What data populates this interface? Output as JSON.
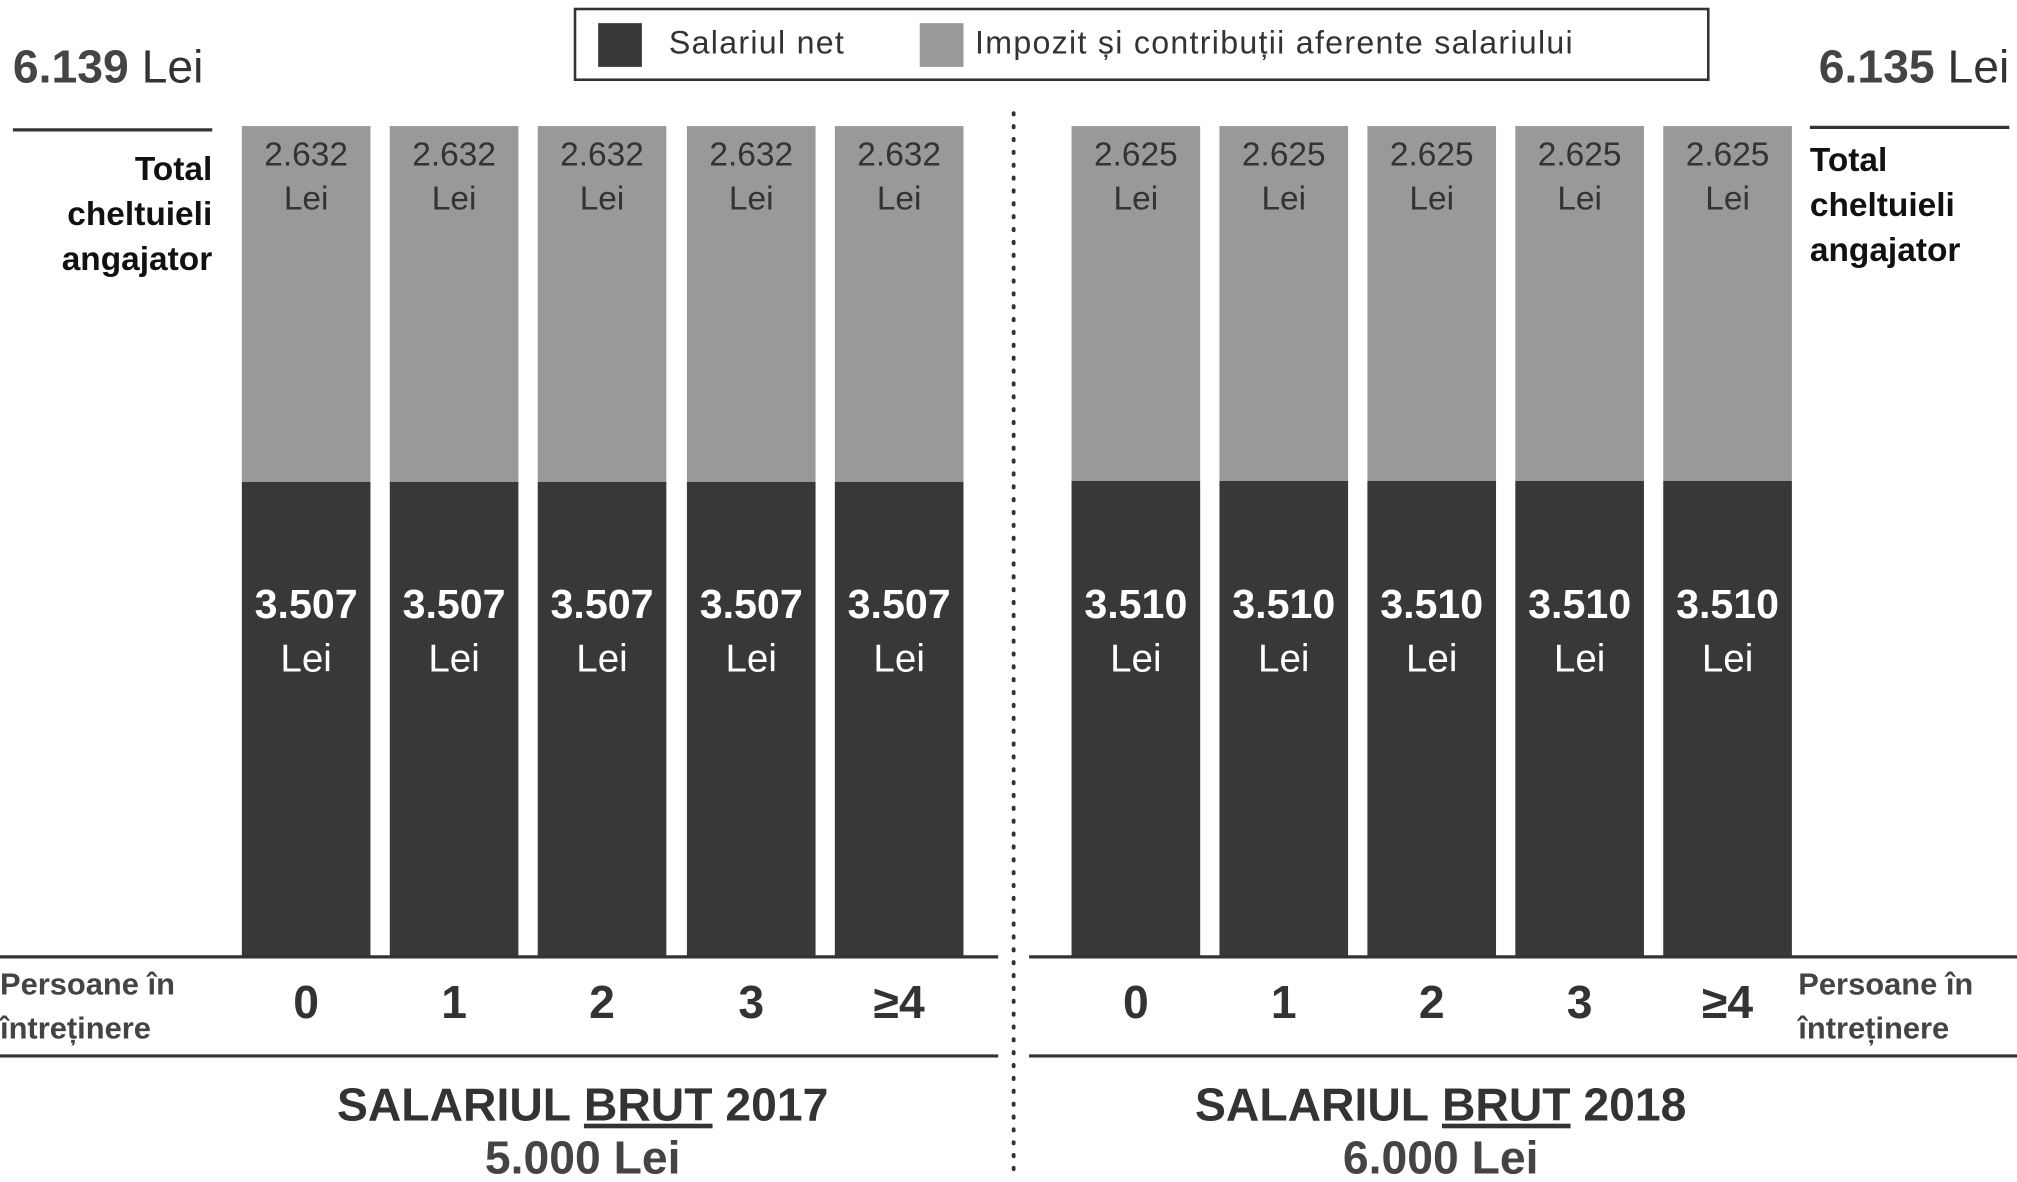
{
  "chart_data": [
    {
      "type": "bar",
      "stacked": true,
      "title_parts": [
        "SALARIUL",
        "BRUT",
        "2017"
      ],
      "subtitle": "5.000 Lei",
      "total": 6139,
      "total_label": "6.139",
      "unit": "Lei",
      "total_caption": [
        "Total",
        "cheltuieli",
        "angajator"
      ],
      "x_label": [
        "Persoane în",
        "întreținere"
      ],
      "categories": [
        "0",
        "1",
        "2",
        "3",
        "≥4"
      ],
      "series": [
        {
          "name": "Salariul net",
          "color": "#383838",
          "values": [
            3507,
            3507,
            3507,
            3507,
            3507
          ],
          "value_labels": [
            "3.507",
            "3.507",
            "3.507",
            "3.507",
            "3.507"
          ]
        },
        {
          "name": "Impozit și contribuții aferente salariului",
          "color": "#999999",
          "values": [
            2632,
            2632,
            2632,
            2632,
            2632
          ],
          "value_labels": [
            "2.632",
            "2.632",
            "2.632",
            "2.632",
            "2.632"
          ]
        }
      ]
    },
    {
      "type": "bar",
      "stacked": true,
      "title_parts": [
        "SALARIUL",
        "BRUT",
        "2018"
      ],
      "subtitle": "6.000 Lei",
      "total": 6135,
      "total_label": "6.135",
      "unit": "Lei",
      "total_caption": [
        "Total",
        "cheltuieli",
        "angajator"
      ],
      "x_label": [
        "Persoane în",
        "întreținere"
      ],
      "categories": [
        "0",
        "1",
        "2",
        "3",
        "≥4"
      ],
      "series": [
        {
          "name": "Salariul net",
          "color": "#383838",
          "values": [
            3510,
            3510,
            3510,
            3510,
            3510
          ],
          "value_labels": [
            "3.510",
            "3.510",
            "3.510",
            "3.510",
            "3.510"
          ]
        },
        {
          "name": "Impozit și contribuții aferente salariului",
          "color": "#999999",
          "values": [
            2625,
            2625,
            2625,
            2625,
            2625
          ],
          "value_labels": [
            "2.625",
            "2.625",
            "2.625",
            "2.625",
            "2.625"
          ]
        }
      ]
    }
  ]
}
